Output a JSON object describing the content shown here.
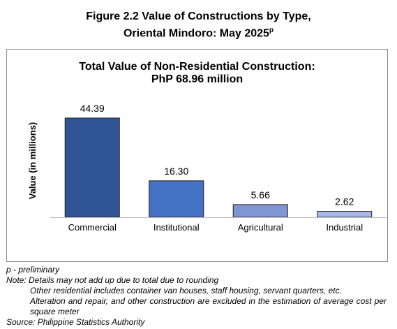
{
  "figure": {
    "title_line1": "Figure 2.2 Value of Constructions by Type,",
    "title_line2": "Oriental Mindoro: May 2025",
    "title_sup": "p"
  },
  "chart_data": {
    "type": "bar",
    "title": "Total Value of Non-Residential Construction:",
    "subtitle": "PhP 68.96 million",
    "categories": [
      "Commercial",
      "Institutional",
      "Agricultural",
      "Industrial"
    ],
    "values": [
      44.39,
      16.3,
      5.66,
      2.62
    ],
    "value_labels": [
      "44.39",
      "16.30",
      "5.66",
      "2.62"
    ],
    "bar_colors": [
      "#2f5597",
      "#4472c4",
      "#7f96d4",
      "#a9b9e6"
    ],
    "ylabel": "Value (in millions)",
    "xlabel": "",
    "ylim": [
      0,
      50
    ],
    "grid": false,
    "legend": "none"
  },
  "notes": {
    "preliminary": "p - preliminary",
    "note1": "Note: Details may not add up due to total due to rounding",
    "note2": "Other residential includes container van houses, staff housing, servant quarters, etc.",
    "note3": "Alteration and repair, and other construction are excluded in the estimation of average cost per square meter",
    "source": "Source: Philippine Statistics Authority"
  }
}
